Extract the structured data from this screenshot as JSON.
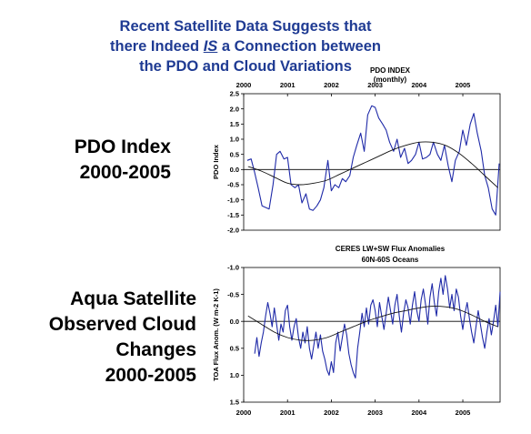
{
  "headline": {
    "line1": "Recent Satellite Data Suggests that",
    "line2_a": "there Indeed ",
    "line2_em": "IS",
    "line2_b": " a Connection between",
    "line3": "the PDO and Cloud Variations"
  },
  "side_labels": {
    "pdo": [
      "PDO Index",
      "2000-2005"
    ],
    "aqua": [
      "Aqua Satellite",
      "Observed Cloud",
      "Changes",
      "2000-2005"
    ]
  },
  "colors": {
    "series": "#1f2aa8",
    "fit": "#111111",
    "title": "#1f3b93",
    "axis": "#000000"
  },
  "chart_data": [
    {
      "type": "line",
      "title": "PDO INDEX",
      "subtitle": "(monthly)",
      "ylabel": "PDO Index",
      "xlim": [
        2000,
        2005.85
      ],
      "ylim": [
        -2.0,
        2.5
      ],
      "y_inverted": false,
      "x_ticks_position": "top",
      "x_ticks": [
        "2000",
        "2001",
        "2002",
        "2003",
        "2004",
        "2005"
      ],
      "y_ticks": [
        "2.5",
        "2.0",
        "1.5",
        "1.0",
        "0.5",
        "0.0",
        "-0.5",
        "-1.0",
        "-1.5",
        "-2.0"
      ],
      "series": [
        {
          "x": [
            2000.08,
            2000.17,
            2000.25,
            2000.33,
            2000.42,
            2000.5,
            2000.58,
            2000.67,
            2000.75,
            2000.83,
            2000.92,
            2001.0,
            2001.08,
            2001.17,
            2001.25,
            2001.33,
            2001.42,
            2001.5,
            2001.58,
            2001.67,
            2001.75,
            2001.83,
            2001.92,
            2002.0,
            2002.08,
            2002.17,
            2002.25,
            2002.33,
            2002.42,
            2002.5,
            2002.58,
            2002.67,
            2002.75,
            2002.83,
            2002.92,
            2003.0,
            2003.08,
            2003.17,
            2003.25,
            2003.33,
            2003.42,
            2003.5,
            2003.58,
            2003.67,
            2003.75,
            2003.83,
            2003.92,
            2004.0,
            2004.08,
            2004.17,
            2004.25,
            2004.33,
            2004.42,
            2004.5,
            2004.58,
            2004.67,
            2004.75,
            2004.83,
            2004.92,
            2005.0,
            2005.08,
            2005.17,
            2005.25,
            2005.33,
            2005.42,
            2005.5,
            2005.58,
            2005.67,
            2005.75,
            2005.83
          ],
          "y": [
            0.3,
            0.35,
            -0.1,
            -0.6,
            -1.2,
            -1.25,
            -1.3,
            -0.5,
            0.5,
            0.6,
            0.35,
            0.4,
            -0.5,
            -0.6,
            -0.5,
            -1.1,
            -0.8,
            -1.3,
            -1.35,
            -1.2,
            -1.0,
            -0.6,
            0.3,
            -0.7,
            -0.5,
            -0.6,
            -0.3,
            -0.4,
            -0.2,
            0.4,
            0.8,
            1.2,
            0.6,
            1.8,
            2.1,
            2.05,
            1.7,
            1.5,
            1.3,
            0.9,
            0.6,
            1.0,
            0.4,
            0.7,
            0.2,
            0.3,
            0.5,
            0.9,
            0.35,
            0.4,
            0.5,
            0.9,
            0.5,
            0.3,
            0.8,
            0.1,
            -0.4,
            0.3,
            0.6,
            1.3,
            0.8,
            1.5,
            1.85,
            1.2,
            0.6,
            -0.2,
            -0.6,
            -1.3,
            -1.5,
            0.2
          ]
        }
      ],
      "fit": {
        "x": [
          2000.1,
          2000.4,
          2000.7,
          2001.0,
          2001.3,
          2001.6,
          2001.9,
          2002.2,
          2002.5,
          2002.8,
          2003.1,
          2003.4,
          2003.7,
          2004.0,
          2004.3,
          2004.6,
          2004.9,
          2005.2,
          2005.5,
          2005.8
        ],
        "y": [
          0.1,
          -0.05,
          -0.25,
          -0.45,
          -0.5,
          -0.45,
          -0.35,
          -0.15,
          0.05,
          0.25,
          0.45,
          0.65,
          0.8,
          0.9,
          0.9,
          0.8,
          0.55,
          0.2,
          -0.2,
          -0.6
        ]
      }
    },
    {
      "type": "line",
      "title": "CERES LW+SW Flux Anomalies",
      "subtitle": "60N-60S Oceans",
      "ylabel": "TOA Flux Anom. (W m-2 K-1)",
      "xlim": [
        2000,
        2005.85
      ],
      "ylim": [
        -1.0,
        1.5
      ],
      "y_inverted": true,
      "x_ticks_position": "bottom",
      "x_ticks": [
        "2000",
        "2001",
        "2002",
        "2003",
        "2004",
        "2005"
      ],
      "y_ticks": [
        "-1.0",
        "-0.5",
        "0.0",
        "0.5",
        "1.0",
        "1.5"
      ],
      "series": [
        {
          "x": [
            2000.25,
            2000.3,
            2000.35,
            2000.4,
            2000.45,
            2000.5,
            2000.55,
            2000.6,
            2000.65,
            2000.7,
            2000.75,
            2000.8,
            2000.85,
            2000.9,
            2000.95,
            2001.0,
            2001.05,
            2001.1,
            2001.15,
            2001.2,
            2001.25,
            2001.3,
            2001.35,
            2001.4,
            2001.45,
            2001.5,
            2001.55,
            2001.6,
            2001.65,
            2001.7,
            2001.75,
            2001.8,
            2001.85,
            2001.9,
            2001.95,
            2002.0,
            2002.05,
            2002.1,
            2002.15,
            2002.2,
            2002.25,
            2002.3,
            2002.35,
            2002.4,
            2002.45,
            2002.5,
            2002.55,
            2002.6,
            2002.65,
            2002.7,
            2002.75,
            2002.8,
            2002.85,
            2002.9,
            2002.95,
            2003.0,
            2003.05,
            2003.1,
            2003.15,
            2003.2,
            2003.25,
            2003.3,
            2003.35,
            2003.4,
            2003.45,
            2003.5,
            2003.55,
            2003.6,
            2003.65,
            2003.7,
            2003.75,
            2003.8,
            2003.85,
            2003.9,
            2003.95,
            2004.0,
            2004.05,
            2004.1,
            2004.15,
            2004.2,
            2004.25,
            2004.3,
            2004.35,
            2004.4,
            2004.45,
            2004.5,
            2004.55,
            2004.6,
            2004.65,
            2004.7,
            2004.75,
            2004.8,
            2004.85,
            2004.9,
            2004.95,
            2005.0,
            2005.05,
            2005.1,
            2005.15,
            2005.2,
            2005.25,
            2005.3,
            2005.35,
            2005.4,
            2005.45,
            2005.5,
            2005.55,
            2005.6,
            2005.65,
            2005.7,
            2005.75,
            2005.8,
            2005.85
          ],
          "y": [
            0.6,
            0.3,
            0.65,
            0.4,
            0.2,
            -0.1,
            -0.35,
            -0.15,
            0.1,
            -0.25,
            0.05,
            0.35,
            0.05,
            0.2,
            -0.2,
            -0.3,
            0.1,
            0.35,
            0.1,
            -0.05,
            0.3,
            0.5,
            0.2,
            0.4,
            0.1,
            0.5,
            0.7,
            0.45,
            0.2,
            0.5,
            0.25,
            0.55,
            0.7,
            0.9,
            1.0,
            0.75,
            0.95,
            0.4,
            0.2,
            0.55,
            0.3,
            0.05,
            0.25,
            0.6,
            0.8,
            0.95,
            1.05,
            0.5,
            0.2,
            -0.15,
            0.1,
            -0.25,
            0.05,
            -0.3,
            -0.4,
            -0.2,
            0.1,
            -0.35,
            -0.1,
            0.15,
            -0.15,
            -0.45,
            -0.2,
            0.05,
            -0.3,
            -0.5,
            -0.1,
            0.2,
            -0.15,
            -0.4,
            -0.25,
            0.05,
            -0.3,
            -0.55,
            -0.2,
            0.0,
            -0.4,
            -0.6,
            -0.3,
            0.05,
            -0.45,
            -0.7,
            -0.35,
            -0.1,
            -0.55,
            -0.8,
            -0.5,
            -0.85,
            -0.6,
            -0.25,
            -0.5,
            -0.2,
            -0.6,
            -0.45,
            -0.1,
            0.15,
            -0.15,
            -0.35,
            -0.05,
            0.2,
            0.4,
            0.1,
            -0.2,
            0.05,
            0.3,
            0.5,
            0.2,
            -0.05,
            0.25,
            0.0,
            -0.3,
            0.1,
            -0.55
          ]
        }
      ],
      "fit": {
        "x": [
          2000.1,
          2000.4,
          2000.7,
          2001.0,
          2001.3,
          2001.6,
          2001.9,
          2002.2,
          2002.5,
          2002.8,
          2003.1,
          2003.4,
          2003.7,
          2004.0,
          2004.3,
          2004.6,
          2004.9,
          2005.2,
          2005.5,
          2005.8
        ],
        "y": [
          -0.1,
          0.05,
          0.2,
          0.3,
          0.35,
          0.35,
          0.3,
          0.2,
          0.1,
          0.0,
          -0.08,
          -0.15,
          -0.2,
          -0.25,
          -0.28,
          -0.27,
          -0.22,
          -0.12,
          0.0,
          0.1
        ]
      }
    }
  ]
}
